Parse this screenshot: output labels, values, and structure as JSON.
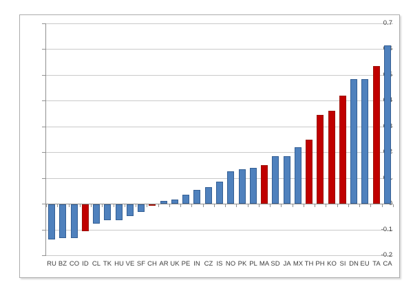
{
  "chart_data": {
    "type": "bar",
    "title": "",
    "xlabel": "",
    "ylabel": "",
    "categories": [
      "RU",
      "BZ",
      "CO",
      "ID",
      "CL",
      "TK",
      "HU",
      "VE",
      "SF",
      "CH",
      "AR",
      "UK",
      "PE",
      "IN",
      "CZ",
      "IS",
      "NO",
      "PK",
      "PL",
      "MA",
      "SD",
      "JA",
      "MX",
      "TH",
      "PH",
      "KO",
      "SI",
      "DN",
      "EU",
      "TA",
      "CA"
    ],
    "values": [
      -0.135,
      -0.13,
      -0.13,
      -0.105,
      -0.075,
      -0.06,
      -0.06,
      -0.045,
      -0.03,
      -0.005,
      0.01,
      0.015,
      0.035,
      0.055,
      0.065,
      0.085,
      0.125,
      0.135,
      0.14,
      0.15,
      0.185,
      0.185,
      0.22,
      0.25,
      0.345,
      0.36,
      0.42,
      0.485,
      0.485,
      0.535,
      0.615
    ],
    "bar_colors": [
      "blue",
      "blue",
      "blue",
      "red",
      "blue",
      "blue",
      "blue",
      "blue",
      "blue",
      "red",
      "blue",
      "blue",
      "blue",
      "blue",
      "blue",
      "blue",
      "blue",
      "blue",
      "blue",
      "red",
      "blue",
      "blue",
      "blue",
      "red",
      "red",
      "red",
      "red",
      "blue",
      "blue",
      "red",
      "blue"
    ],
    "ylim": [
      -0.2,
      0.7
    ],
    "y_step": 0.1,
    "y_tick_labels": [
      "0.7",
      "0.6",
      "0.5",
      "0.4",
      "0.3",
      "0.2",
      "0.1",
      "0",
      "-0.1",
      "-0.2"
    ],
    "grid": true,
    "legend": false
  },
  "style": {
    "palette": {
      "blue_fill": "#4f81bd",
      "blue_border": "#335e93",
      "red_fill": "#c00000",
      "red_border": "#9c1006",
      "gridline": "#c9c9c9",
      "axis": "#8f8f8f",
      "label": "#3b3b3b",
      "frame_border": "#ababab"
    }
  }
}
